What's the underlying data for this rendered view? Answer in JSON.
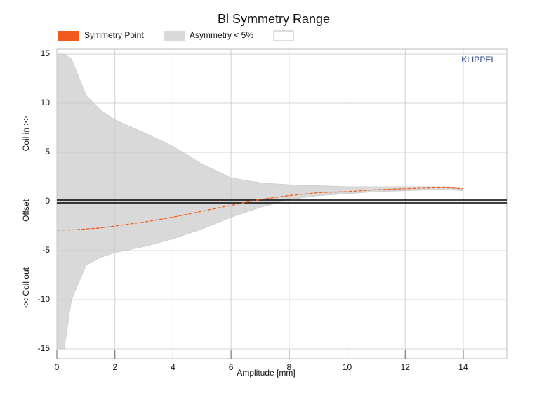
{
  "chart_data": {
    "type": "range_area",
    "title": "Bl Symmetry Range",
    "x_label": "Amplitude [mm]",
    "y_label_parts": [
      "<< Coil out",
      "Offset",
      "Coil in >>"
    ],
    "annotation": "KLIPPEL",
    "x": [
      0,
      0.25,
      0.5,
      1,
      1.5,
      2,
      3,
      4,
      5,
      6,
      7,
      8,
      9,
      10,
      11,
      12,
      13,
      13.5,
      14
    ],
    "series": [
      {
        "name": "Symmetry Point",
        "color": "#f05a1a",
        "values": [
          -2.9,
          -2.9,
          -2.9,
          -2.8,
          -2.7,
          -2.5,
          -2.1,
          -1.6,
          -1.0,
          -0.4,
          0.2,
          0.6,
          0.9,
          1.0,
          1.2,
          1.3,
          1.4,
          1.4,
          1.3
        ]
      },
      {
        "name": "Asymmetry < 5%",
        "color": "#d9d9d9",
        "upper": [
          15,
          15,
          14.5,
          10.8,
          9.3,
          8.3,
          7,
          5.6,
          3.8,
          2.4,
          1.9,
          1.7,
          1.6,
          1.5,
          1.5,
          1.5,
          1.5,
          1.5,
          1.2
        ],
        "lower": [
          -15,
          -15,
          -10,
          -6.5,
          -5.7,
          -5.2,
          -4.6,
          -3.8,
          -2.8,
          -1.6,
          -0.6,
          0.2,
          0.6,
          0.8,
          1.0,
          1.1,
          1.2,
          1.2,
          1.1
        ]
      }
    ],
    "xlim": [
      0,
      15.5
    ],
    "xticks": [
      0,
      2,
      4,
      6,
      8,
      10,
      12,
      14
    ],
    "ylim": [
      -16,
      15.5
    ],
    "yticks": [
      -15,
      -10,
      -5,
      0,
      5,
      10,
      15
    ],
    "grid": true
  }
}
